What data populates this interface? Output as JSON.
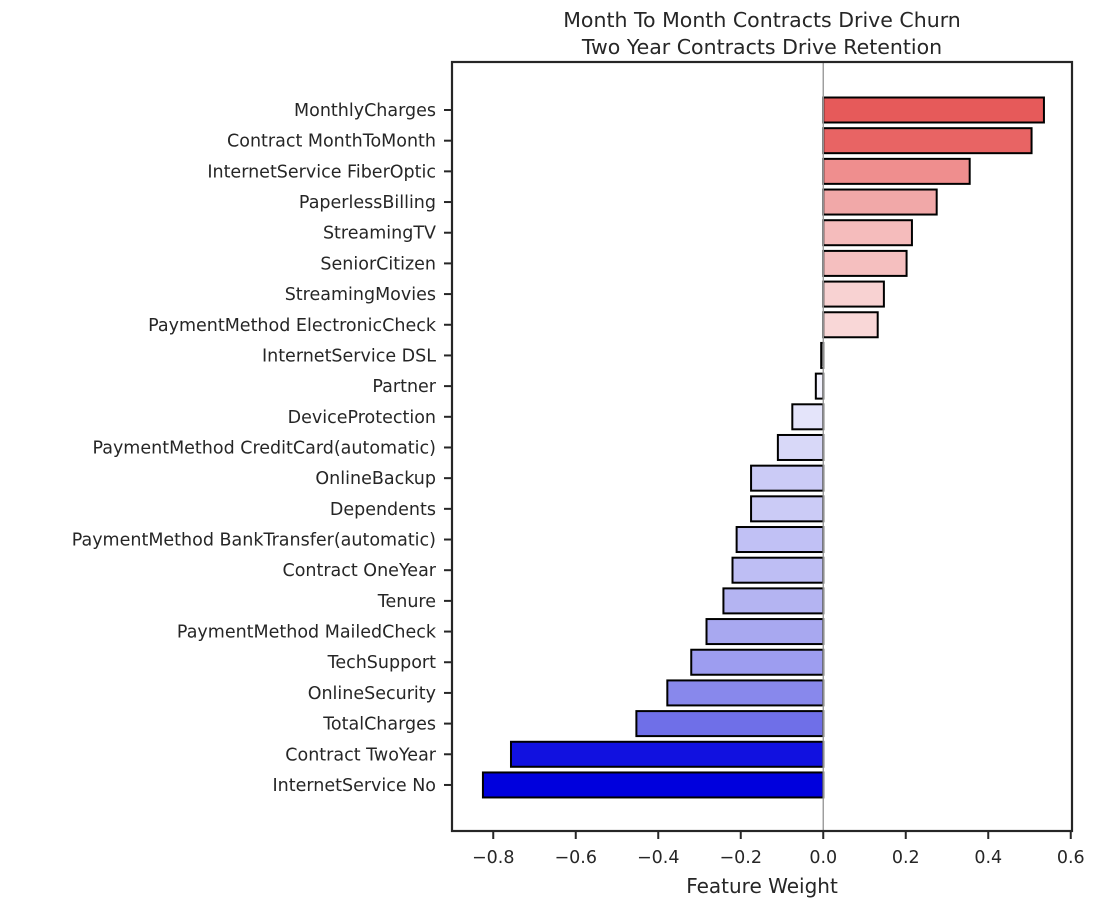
{
  "chart_data": {
    "type": "bar",
    "orientation": "horizontal",
    "title": [
      "Month To Month Contracts Drive Churn",
      "Two Year Contracts Drive Retention"
    ],
    "xlabel": "Feature Weight",
    "ylabel": "",
    "xlim": [
      -0.9,
      0.6
    ],
    "xticks": [
      -0.8,
      -0.6,
      -0.4,
      -0.2,
      0.0,
      0.2,
      0.4,
      0.6
    ],
    "xtick_labels": [
      "−0.8",
      "−0.6",
      "−0.4",
      "−0.2",
      "0.0",
      "0.2",
      "0.4",
      "0.6"
    ],
    "grid": false,
    "legend": "none",
    "zero_line_color": "#999999",
    "bar_edge_color": "#000000",
    "categories": [
      "MonthlyCharges",
      "Contract MonthToMonth",
      "InternetService FiberOptic",
      "PaperlessBilling",
      "StreamingTV",
      "SeniorCitizen",
      "StreamingMovies",
      "PaymentMethod ElectronicCheck",
      "InternetService DSL",
      "Partner",
      "DeviceProtection",
      "PaymentMethod CreditCard(automatic)",
      "OnlineBackup",
      "Dependents",
      "PaymentMethod BankTransfer(automatic)",
      "Contract OneYear",
      "Tenure",
      "PaymentMethod MailedCheck",
      "TechSupport",
      "OnlineSecurity",
      "TotalCharges",
      "Contract TwoYear",
      "InternetService No"
    ],
    "values": [
      0.535,
      0.505,
      0.355,
      0.275,
      0.215,
      0.202,
      0.147,
      0.132,
      -0.005,
      -0.018,
      -0.075,
      -0.11,
      -0.175,
      -0.175,
      -0.21,
      -0.22,
      -0.242,
      -0.283,
      -0.32,
      -0.378,
      -0.453,
      -0.757,
      -0.825
    ],
    "colors": [
      "#e65a5a",
      "#e86464",
      "#ef8e8e",
      "#f1a8a8",
      "#f5bcbc",
      "#f5bfbf",
      "#f8d2d2",
      "#f9d7d7",
      "#fdfdff",
      "#f4f4ff",
      "#e4e4fa",
      "#d8d8f8",
      "#cbcbf6",
      "#cbcbf6",
      "#c1c1f5",
      "#bebef4",
      "#b4b4f2",
      "#a8a8f0",
      "#9d9df0",
      "#8888ec",
      "#6f6fe8",
      "#1111e0",
      "#0000dd"
    ]
  }
}
